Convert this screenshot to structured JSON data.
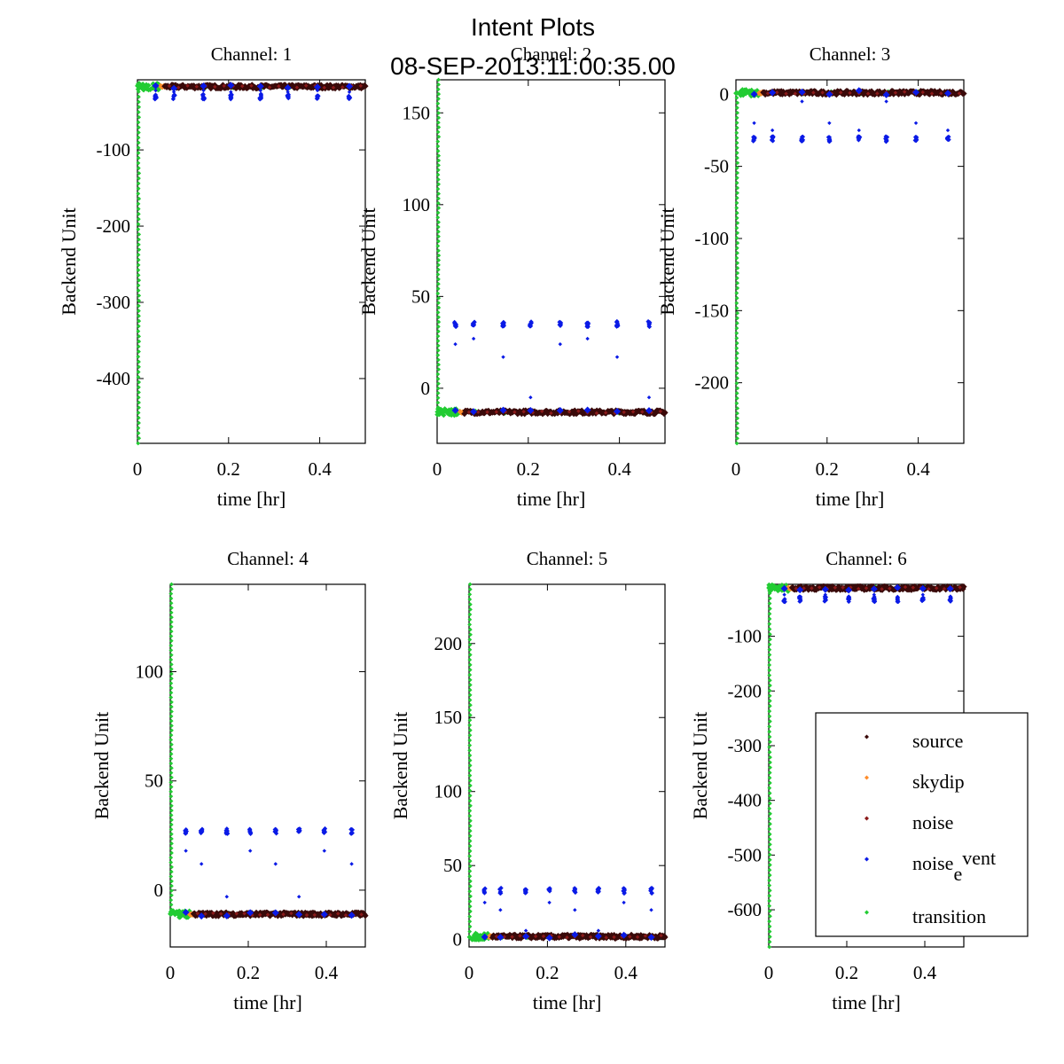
{
  "figure": {
    "title": "Intent Plots",
    "subtitle": "08-SEP-2013:11:00:35.00"
  },
  "colors": {
    "source": "#3a0a0a",
    "skydip": "#ff8c2a",
    "noise": "#8b1a1a",
    "noise_event": "#0a1ae6",
    "transition": "#22cc33"
  },
  "legend": {
    "placement": "lower-right of Channel 6",
    "items": [
      {
        "key": "source",
        "label": "source",
        "color": "#3a0a0a"
      },
      {
        "key": "skydip",
        "label": "skydip",
        "color": "#ff8c2a"
      },
      {
        "key": "noise",
        "label": "noise",
        "color": "#8b1a1a"
      },
      {
        "key": "noise_event",
        "label": "noise",
        "sub": "e",
        "sup": "vent",
        "color": "#0a1ae6"
      },
      {
        "key": "transition",
        "label": "transition",
        "color": "#22cc33"
      }
    ]
  },
  "chart_data": [
    {
      "type": "scatter",
      "title": "Channel: 1",
      "xlabel": "time [hr]",
      "ylabel": "Backend Unit",
      "xlim": [
        0,
        0.5
      ],
      "ylim": [
        -485,
        -8
      ],
      "xticks": [
        0,
        0.2,
        0.4
      ],
      "xtick_labels": [
        "0",
        "0.2",
        "0.4"
      ],
      "yticks": [
        -400,
        -300,
        -200,
        -100
      ],
      "ytick_labels": [
        "-400",
        "-300",
        "-200",
        "-100"
      ],
      "baseline": -17,
      "event_high": -30,
      "event_outliers": [
        -22,
        -24
      ],
      "transition_start": -485,
      "series": [
        "source",
        "skydip",
        "noise",
        "noise_event",
        "transition"
      ]
    },
    {
      "type": "scatter",
      "title": "Channel: 2",
      "xlabel": "time [hr]",
      "ylabel": "Backend Unit",
      "xlim": [
        0,
        0.5
      ],
      "ylim": [
        -30,
        168
      ],
      "xticks": [
        0,
        0.2,
        0.4
      ],
      "xtick_labels": [
        "0",
        "0.2",
        "0.4"
      ],
      "yticks": [
        0,
        50,
        100,
        150
      ],
      "ytick_labels": [
        "0",
        "50",
        "100",
        "150"
      ],
      "baseline": -13,
      "event_high": 35,
      "event_outliers": [
        24,
        27,
        17,
        -5
      ],
      "transition_start": 168,
      "series": [
        "source",
        "skydip",
        "noise",
        "noise_event",
        "transition"
      ]
    },
    {
      "type": "scatter",
      "title": "Channel: 3",
      "xlabel": "time [hr]",
      "ylabel": "Backend Unit",
      "xlim": [
        0,
        0.5
      ],
      "ylim": [
        -242,
        10
      ],
      "xticks": [
        0,
        0.2,
        0.4
      ],
      "xtick_labels": [
        "0",
        "0.2",
        "0.4"
      ],
      "yticks": [
        -200,
        -150,
        -100,
        -50,
        0
      ],
      "ytick_labels": [
        "-200",
        "-150",
        "-100",
        "-50",
        "0"
      ],
      "baseline": 1,
      "event_high": -31,
      "event_outliers": [
        -20,
        -25,
        -5
      ],
      "transition_start": -242,
      "series": [
        "source",
        "skydip",
        "noise",
        "noise_event",
        "transition"
      ]
    },
    {
      "type": "scatter",
      "title": "Channel: 4",
      "xlabel": "time [hr]",
      "ylabel": "Backend Unit",
      "xlim": [
        0,
        0.5
      ],
      "ylim": [
        -26,
        140
      ],
      "xticks": [
        0,
        0.2,
        0.4
      ],
      "xtick_labels": [
        "0",
        "0.2",
        "0.4"
      ],
      "yticks": [
        0,
        50,
        100
      ],
      "ytick_labels": [
        "0",
        "50",
        "100"
      ],
      "baseline": -11,
      "event_high": 27,
      "event_outliers": [
        18,
        12,
        -3
      ],
      "transition_start": 140,
      "series": [
        "source",
        "skydip",
        "noise",
        "noise_event",
        "transition"
      ]
    },
    {
      "type": "scatter",
      "title": "Channel: 5",
      "xlabel": "time [hr]",
      "ylabel": "Backend Unit",
      "xlim": [
        0,
        0.5
      ],
      "ylim": [
        -5,
        240
      ],
      "xticks": [
        0,
        0.2,
        0.4
      ],
      "xtick_labels": [
        "0",
        "0.2",
        "0.4"
      ],
      "yticks": [
        0,
        50,
        100,
        150,
        200
      ],
      "ytick_labels": [
        "0",
        "50",
        "100",
        "150",
        "200"
      ],
      "baseline": 2,
      "event_high": 33,
      "event_outliers": [
        25,
        20,
        6
      ],
      "transition_start": 240,
      "series": [
        "source",
        "skydip",
        "noise",
        "noise_event",
        "transition"
      ]
    },
    {
      "type": "scatter",
      "title": "Channel: 6",
      "xlabel": "time [hr]",
      "ylabel": "Backend Unit",
      "xlim": [
        0,
        0.5
      ],
      "ylim": [
        -668,
        -5
      ],
      "xticks": [
        0,
        0.2,
        0.4
      ],
      "xtick_labels": [
        "0",
        "0.2",
        "0.4"
      ],
      "yticks": [
        -600,
        -500,
        -400,
        -300,
        -200,
        -100
      ],
      "ytick_labels": [
        "-600",
        "-500",
        "-400",
        "-300",
        "-200",
        "-100"
      ],
      "baseline": -12,
      "event_high": -32,
      "event_outliers": [
        -24,
        -28
      ],
      "transition_start": -668,
      "series": [
        "source",
        "skydip",
        "noise",
        "noise_event",
        "transition"
      ]
    }
  ]
}
